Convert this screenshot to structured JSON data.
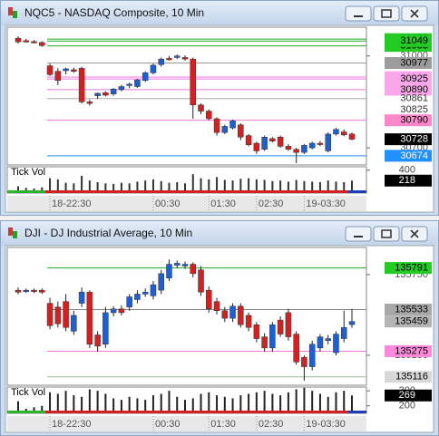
{
  "windows": [
    {
      "title": "NQC5 - NASDAQ Composite, 10 Min",
      "chart_data": {
        "type": "candlestick",
        "categories": [
          null,
          null,
          null,
          null,
          "18-22:30",
          null,
          null,
          null,
          null,
          null,
          null,
          null,
          null,
          null,
          null,
          null,
          null,
          "00:30",
          null,
          null,
          null,
          null,
          null,
          null,
          "01:30",
          null,
          null,
          null,
          null,
          null,
          "02:30",
          null,
          null,
          null,
          null,
          null,
          "19-03:30",
          null,
          null,
          null,
          null,
          null,
          null
        ],
        "open": [
          31058,
          31050,
          31047,
          31044,
          30968,
          30950,
          30952,
          30955,
          30960,
          30850,
          30870,
          30880,
          30876,
          30890,
          30905,
          30900,
          30920,
          30945,
          30972,
          30992,
          30995,
          30995,
          30990,
          30840,
          30820,
          30795,
          30750,
          30765,
          30775,
          30740,
          30715,
          30695,
          30730,
          30735,
          30705,
          30695,
          30685,
          30700,
          30715,
          30690,
          30745,
          30752,
          30745
        ],
        "high": [
          31064,
          31056,
          31052,
          31048,
          30975,
          30960,
          30962,
          30962,
          30965,
          30858,
          30880,
          30885,
          30895,
          30905,
          30912,
          30925,
          30950,
          30975,
          30995,
          31000,
          31005,
          31002,
          30995,
          30845,
          30825,
          30800,
          30775,
          30792,
          30780,
          30745,
          30720,
          30740,
          30735,
          30740,
          30712,
          30700,
          30712,
          30720,
          30722,
          30750,
          30765,
          30760,
          30750
        ],
        "low": [
          31040,
          31044,
          31041,
          31030,
          30935,
          30905,
          30940,
          30945,
          30845,
          30838,
          30860,
          30868,
          30870,
          30885,
          30895,
          30896,
          30915,
          30940,
          30965,
          30985,
          30990,
          30985,
          30795,
          30810,
          30790,
          30740,
          30745,
          30760,
          30725,
          30705,
          30680,
          30690,
          30718,
          30700,
          30690,
          30650,
          30680,
          30695,
          30705,
          30685,
          30740,
          30738,
          30725
        ],
        "close": [
          31046,
          31048,
          31044,
          31034,
          30939,
          30920,
          30958,
          30950,
          30850,
          30845,
          30878,
          30872,
          30892,
          30900,
          30908,
          30922,
          30945,
          30970,
          30990,
          30988,
          31000,
          30990,
          30840,
          30820,
          30795,
          30750,
          30770,
          30788,
          30735,
          30710,
          30690,
          30735,
          30722,
          30705,
          30695,
          30685,
          30708,
          30715,
          30712,
          30745,
          30760,
          30742,
          30728
        ],
        "up_color": "#1f5fd6",
        "down_color": "#d42020",
        "ylim": [
          30644,
          31094
        ],
        "yticks": [
          31000,
          30700
        ],
        "levels": [
          {
            "value": 31055,
            "line": "#22aa22",
            "bg": "#22cc22",
            "fg": "#000000"
          },
          {
            "value": 31033,
            "line": "#22aa22",
            "bg": "#22cc22",
            "fg": "#000000"
          },
          {
            "value": 31049,
            "line": "#22aa22",
            "bg": "#22cc22",
            "fg": "#000000"
          },
          {
            "value": 30977,
            "line": "#999999",
            "bg": "#9c9c9c",
            "fg": "#000000"
          },
          {
            "value": 30931,
            "line": "#ee77dd",
            "bg": "#f9a6ea",
            "fg": "#000000"
          },
          {
            "value": 30925,
            "line": "#ee77dd",
            "bg": "#f9a6ea",
            "fg": "#000000"
          },
          {
            "value": 30890,
            "line": "#ee77dd",
            "bg": "#f9a6ea",
            "fg": "#000000"
          },
          {
            "value": 30861,
            "line": "#aaaaaa",
            "fg": "#333333"
          },
          {
            "value": 30825,
            "fg": "#333333"
          },
          {
            "value": 30790,
            "line": "#ee77dd",
            "bg": "#ff88cc",
            "fg": "#000000"
          },
          {
            "value": 30674,
            "line": "#1e90ff",
            "bg": "#1e90ff",
            "fg": "#ffffff"
          }
        ],
        "last_bg": "#000000",
        "last_fg": "#ffffff",
        "volume": {
          "label": "Tick Vol",
          "values": [
            120,
            90,
            80,
            100,
            260,
            240,
            180,
            170,
            300,
            220,
            190,
            170,
            160,
            180,
            170,
            200,
            220,
            240,
            210,
            180,
            190,
            170,
            330,
            260,
            240,
            280,
            230,
            220,
            250,
            260,
            240,
            230,
            210,
            220,
            200,
            230,
            210,
            200,
            190,
            220,
            200,
            190,
            218
          ],
          "ylim": [
            0,
            460
          ],
          "yticks": [
            400
          ],
          "color": "#333333"
        }
      }
    },
    {
      "title": "DJI - DJ Industrial Average, 10 Min",
      "chart_data": {
        "type": "candlestick",
        "categories": [
          null,
          null,
          null,
          null,
          "18-22:30",
          null,
          null,
          null,
          null,
          null,
          null,
          null,
          null,
          null,
          null,
          null,
          null,
          "00:30",
          null,
          null,
          null,
          null,
          null,
          null,
          "01:30",
          null,
          null,
          null,
          null,
          null,
          "02:30",
          null,
          null,
          null,
          null,
          null,
          "19-03:30",
          null,
          null,
          null,
          null,
          null,
          null
        ],
        "open": [
          135653,
          135647,
          135653,
          135653,
          135572,
          135549,
          135583,
          135399,
          135572,
          135641,
          135376,
          135318,
          135514,
          135537,
          135549,
          135595,
          135629,
          135618,
          135653,
          135728,
          135808,
          135803,
          135814,
          135779,
          135653,
          135583,
          135526,
          135479,
          135554,
          135497,
          135439,
          135364,
          135295,
          135468,
          135514,
          135381,
          135237,
          135179,
          135295,
          135341,
          135266,
          135353,
          135440
        ],
        "high": [
          135670,
          135664,
          135664,
          135664,
          135606,
          135583,
          135629,
          135526,
          135670,
          135653,
          135399,
          135549,
          135554,
          135560,
          135629,
          135653,
          135664,
          135710,
          135779,
          135843,
          135837,
          135831,
          135826,
          135803,
          135676,
          135606,
          135549,
          135572,
          135572,
          135514,
          135456,
          135387,
          135456,
          135491,
          135537,
          135399,
          135249,
          135341,
          135381,
          135376,
          135399,
          135526,
          135537
        ],
        "low": [
          135629,
          135635,
          135635,
          135629,
          135410,
          135422,
          135399,
          135376,
          135549,
          135295,
          135272,
          135295,
          135491,
          135497,
          135526,
          135572,
          135612,
          135595,
          135629,
          135710,
          135791,
          135785,
          135733,
          135618,
          135514,
          135503,
          135456,
          135456,
          135422,
          135399,
          135330,
          135272,
          135272,
          135364,
          135341,
          135191,
          135093,
          135156,
          135272,
          135318,
          135249,
          135330,
          135420
        ],
        "close": [
          135641,
          135653,
          135647,
          135641,
          135433,
          135445,
          135422,
          135497,
          135641,
          135318,
          135306,
          135514,
          135537,
          135514,
          135612,
          135629,
          135641,
          135687,
          135756,
          135814,
          135820,
          135814,
          135756,
          135641,
          135537,
          135526,
          135479,
          135554,
          135439,
          135422,
          135353,
          135295,
          135439,
          135381,
          135364,
          135208,
          135179,
          135318,
          135364,
          135353,
          135381,
          135422,
          135459
        ],
        "up_color": "#1f5fd6",
        "down_color": "#d42020",
        "ylim": [
          135064,
          135918
        ],
        "yticks": [
          135250,
          135750
        ],
        "levels": [
          {
            "value": 135791,
            "line": "#22aa22",
            "bg": "#22cc22",
            "fg": "#000000"
          },
          {
            "value": 135533,
            "line": "#888888",
            "bg": "#a8a8a8",
            "fg": "#000000"
          },
          {
            "value": 135275,
            "line": "#ee77dd",
            "bg": "#ff88dd",
            "fg": "#000000"
          },
          {
            "value": 135116,
            "line": "#99bb99",
            "bg": "#d8d8d8",
            "fg": "#000000"
          }
        ],
        "last_bg": "#b4b4b4",
        "last_fg": "#000000",
        "volume": {
          "label": "Tick Vol",
          "values": [
            230,
            180,
            190,
            200,
            290,
            280,
            300,
            270,
            260,
            310,
            300,
            280,
            250,
            240,
            260,
            250,
            240,
            270,
            280,
            300,
            260,
            240,
            250,
            280,
            290,
            270,
            260,
            250,
            270,
            280,
            290,
            300,
            280,
            270,
            290,
            310,
            320,
            300,
            280,
            260,
            290,
            300,
            269
          ],
          "ylim": [
            150,
            325
          ],
          "yticks": [
            200,
            300
          ],
          "color": "#222222"
        }
      }
    }
  ]
}
